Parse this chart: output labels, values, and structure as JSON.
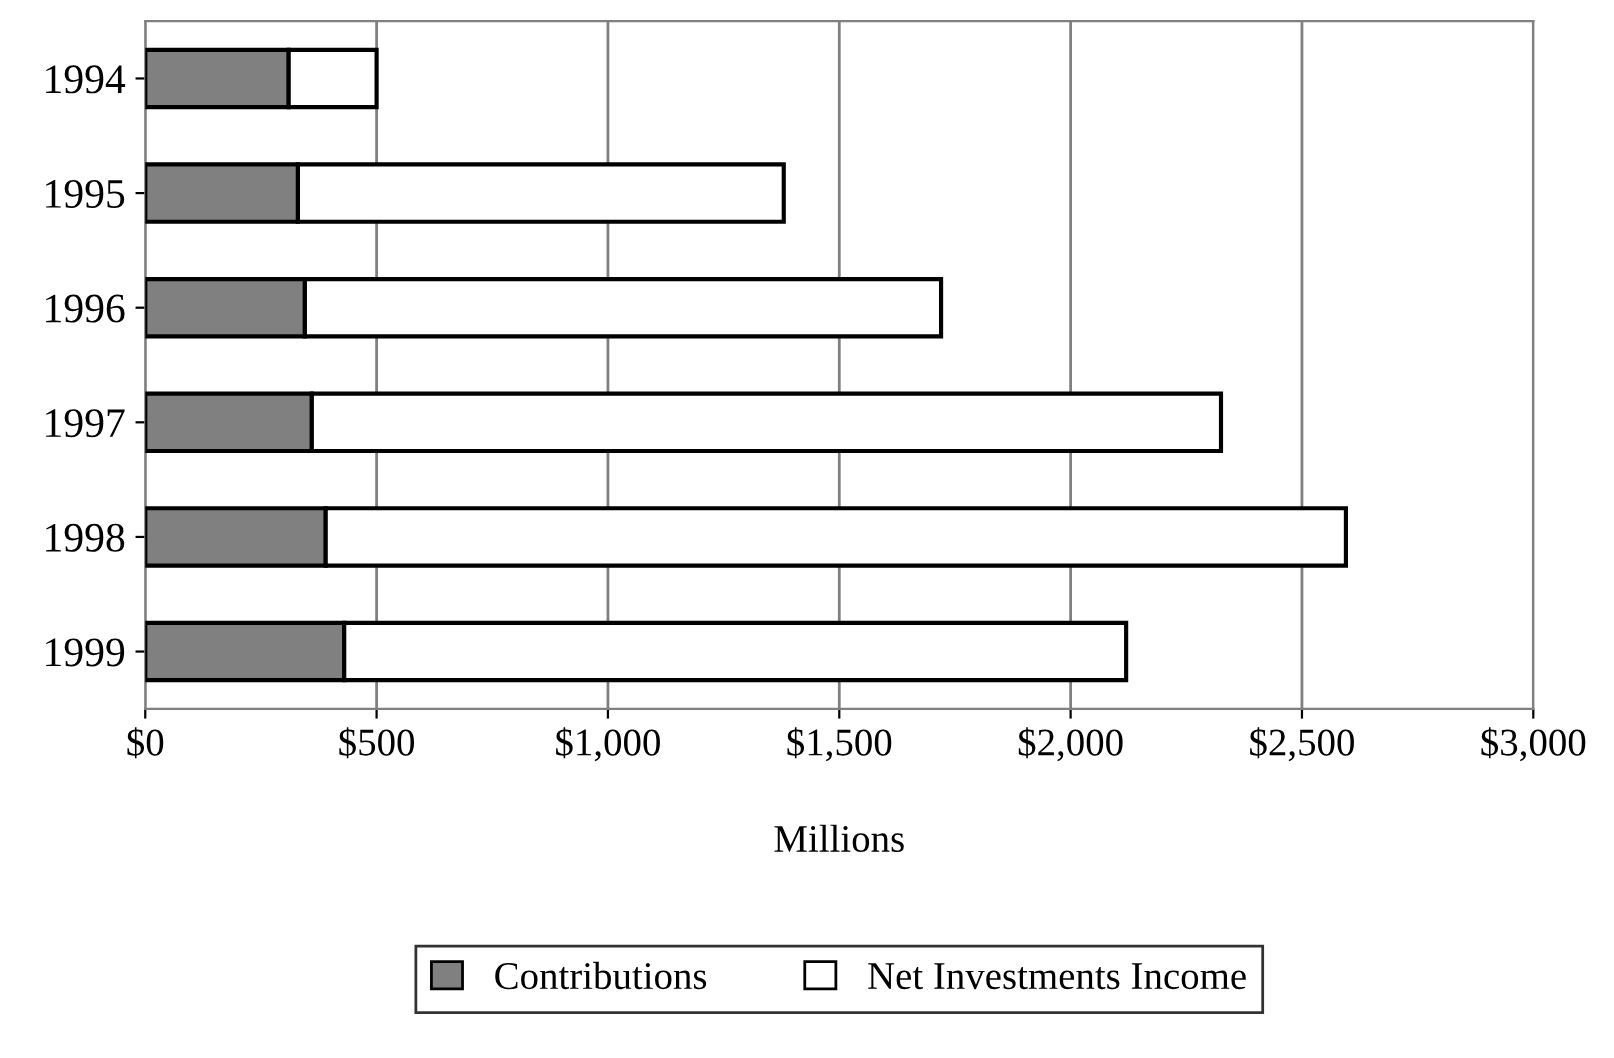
{
  "chart_data": {
    "type": "bar",
    "orientation": "horizontal",
    "stacked": true,
    "xlabel": "Millions",
    "categories": [
      "1994",
      "1995",
      "1996",
      "1997",
      "1998",
      "1999"
    ],
    "series": [
      {
        "name": "Contributions",
        "color": "#808080",
        "values": [
          310,
          330,
          345,
          360,
          390,
          430
        ]
      },
      {
        "name": "Net Investments Income",
        "color": "#ffffff",
        "values": [
          190,
          1050,
          1375,
          1965,
          2205,
          1690
        ]
      }
    ],
    "xlim": [
      0,
      3000
    ],
    "xticks": [
      {
        "value": 0,
        "label": "$0"
      },
      {
        "value": 500,
        "label": "$500"
      },
      {
        "value": 1000,
        "label": "$1,000"
      },
      {
        "value": 1500,
        "label": "$1,500"
      },
      {
        "value": 2000,
        "label": "$2,000"
      },
      {
        "value": 2500,
        "label": "$2,500"
      },
      {
        "value": 3000,
        "label": "$3,000"
      }
    ],
    "grid": "x",
    "legend": "bottom"
  }
}
